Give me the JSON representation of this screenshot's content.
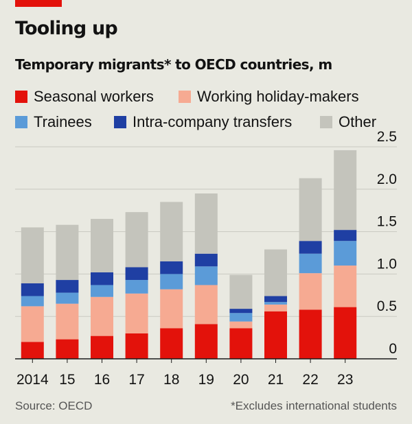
{
  "title": "Tooling up",
  "subtitle": "Temporary migrants* to OECD countries, m",
  "source": "Source: OECD",
  "note": "*Excludes international students",
  "colors": {
    "background": "#e9e9e1",
    "brand_red": "#e3120b",
    "gridline": "#c9c9c1",
    "baseline": "#1a1a1a"
  },
  "legend": [
    {
      "label": "Seasonal workers",
      "color": "#e3120b"
    },
    {
      "label": "Working holiday-makers",
      "color": "#f6aa92"
    },
    {
      "label": "Trainees",
      "color": "#5b9bd8"
    },
    {
      "label": "Intra-company transfers",
      "color": "#1f3fa3"
    },
    {
      "label": "Other",
      "color": "#c4c4bc"
    }
  ],
  "chart_data": {
    "type": "bar",
    "stacked": true,
    "title": "Temporary migrants* to OECD countries, m",
    "xlabel": "",
    "ylabel": "",
    "ylim": [
      0,
      2.5
    ],
    "yticks": [
      0,
      0.5,
      1.0,
      1.5,
      2.0,
      2.5
    ],
    "ytick_labels": [
      "0",
      "0.5",
      "1.0",
      "1.5",
      "2.0",
      "2.5"
    ],
    "categories": [
      "2014",
      "15",
      "16",
      "17",
      "18",
      "19",
      "20",
      "21",
      "22",
      "23"
    ],
    "series": [
      {
        "name": "Seasonal workers",
        "color": "#e3120b",
        "values": [
          0.2,
          0.23,
          0.27,
          0.3,
          0.36,
          0.41,
          0.36,
          0.56,
          0.58,
          0.61
        ]
      },
      {
        "name": "Working holiday-makers",
        "color": "#f6aa92",
        "values": [
          0.42,
          0.42,
          0.46,
          0.47,
          0.46,
          0.46,
          0.08,
          0.08,
          0.43,
          0.49
        ]
      },
      {
        "name": "Trainees",
        "color": "#5b9bd8",
        "values": [
          0.12,
          0.13,
          0.14,
          0.16,
          0.18,
          0.22,
          0.1,
          0.03,
          0.23,
          0.29
        ]
      },
      {
        "name": "Intra-company transfers",
        "color": "#1f3fa3",
        "values": [
          0.15,
          0.15,
          0.15,
          0.15,
          0.15,
          0.15,
          0.05,
          0.07,
          0.15,
          0.13
        ]
      },
      {
        "name": "Other",
        "color": "#c4c4bc",
        "values": [
          0.66,
          0.65,
          0.63,
          0.65,
          0.7,
          0.71,
          0.4,
          0.55,
          0.74,
          0.94
        ]
      }
    ]
  }
}
